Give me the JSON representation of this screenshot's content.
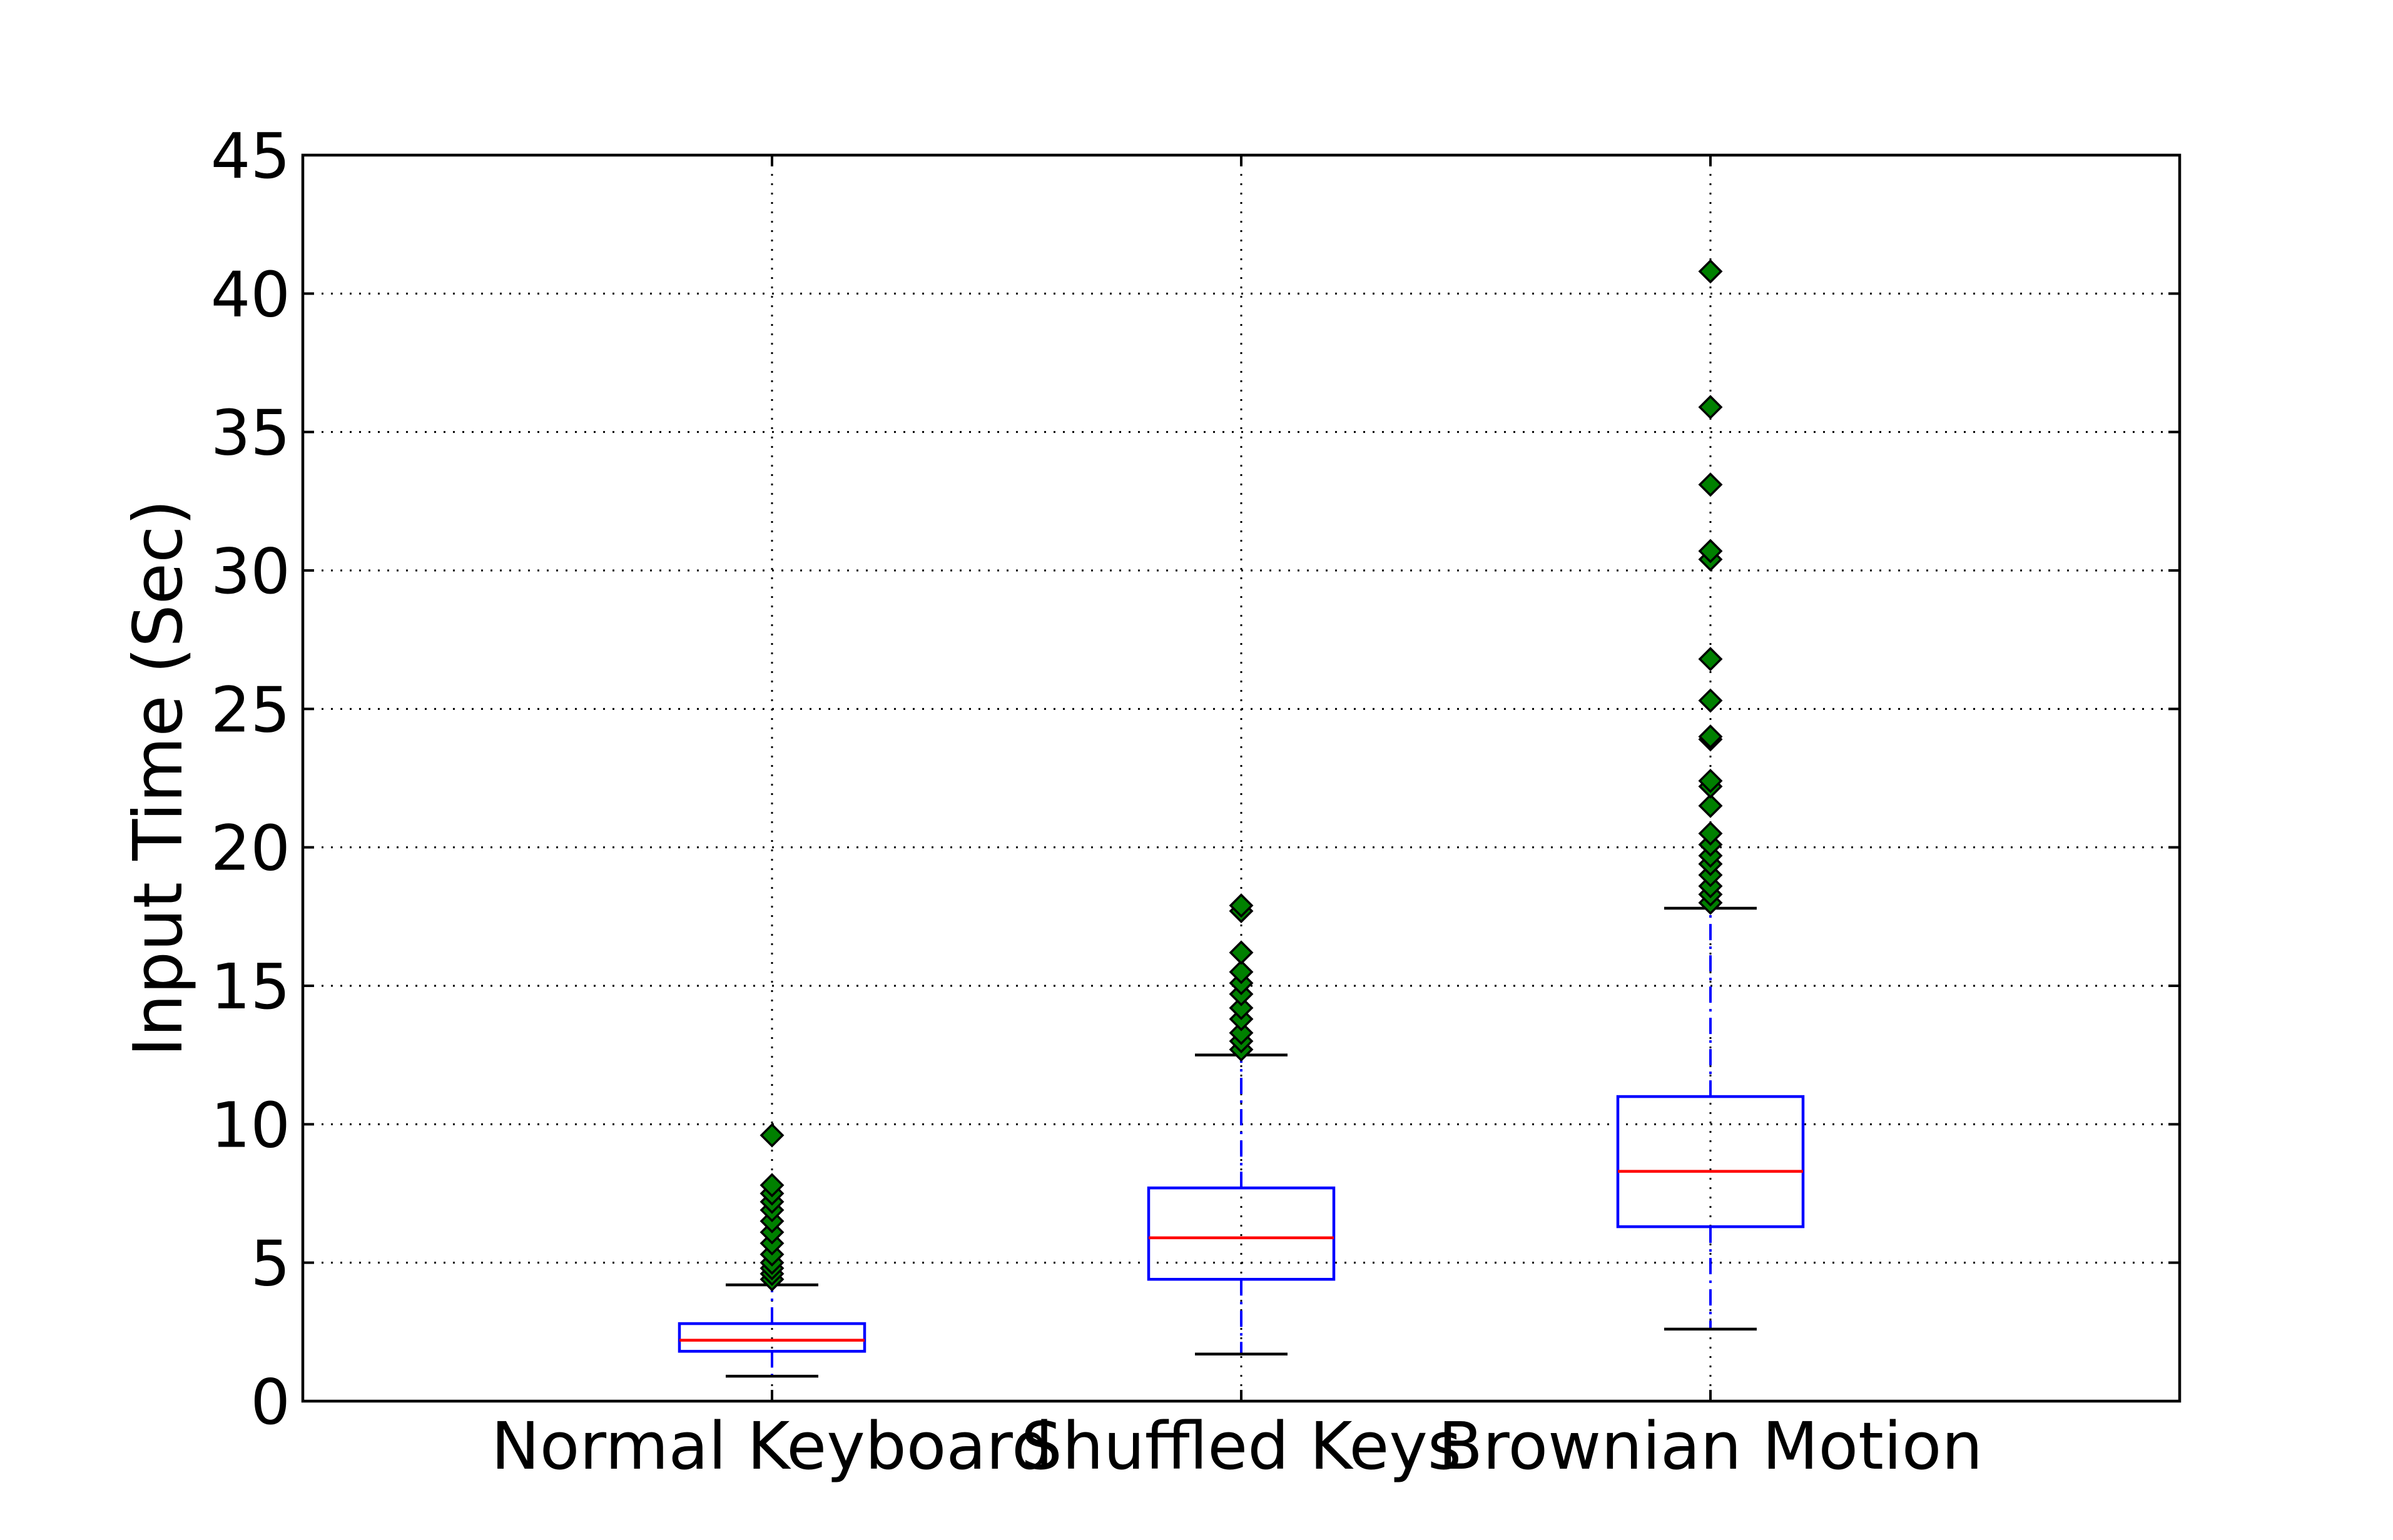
{
  "chart_data": {
    "type": "box",
    "title": "",
    "xlabel": "",
    "ylabel": "Input Time (Sec)",
    "ylim": [
      0,
      45
    ],
    "yticks": [
      0,
      5,
      10,
      15,
      20,
      25,
      30,
      35,
      40,
      45
    ],
    "ytick_labels": [
      "0",
      "5",
      "10",
      "15",
      "20",
      "25",
      "30",
      "35",
      "40",
      "45"
    ],
    "grid": true,
    "legend": "none",
    "colors": {
      "box": "#0000ff",
      "median": "#ff0000",
      "whisker": "#0000ff",
      "cap": "#000000",
      "outlier_fill": "#008000",
      "outlier_edge": "#000000"
    },
    "categories": [
      "Normal Keyboard",
      "Shuffled Keys",
      "Brownian Motion"
    ],
    "boxes": [
      {
        "label": "Normal Keyboard",
        "whisker_low": 0.9,
        "q1": 1.8,
        "median": 2.2,
        "q3": 2.8,
        "whisker_high": 4.2,
        "outliers": [
          4.4,
          4.6,
          4.8,
          5.0,
          5.3,
          5.7,
          6.1,
          6.5,
          6.9,
          7.2,
          7.5,
          7.8,
          9.6
        ]
      },
      {
        "label": "Shuffled Keys",
        "whisker_low": 1.7,
        "q1": 4.4,
        "median": 5.9,
        "q3": 7.7,
        "whisker_high": 12.5,
        "outliers": [
          12.7,
          13.0,
          13.3,
          13.8,
          14.2,
          14.7,
          15.1,
          15.5,
          16.2,
          17.7,
          17.9
        ]
      },
      {
        "label": "Brownian Motion",
        "whisker_low": 2.6,
        "q1": 6.3,
        "median": 8.3,
        "q3": 11.0,
        "whisker_high": 17.8,
        "outliers": [
          18.0,
          18.3,
          18.6,
          19.0,
          19.4,
          19.7,
          20.1,
          20.5,
          21.5,
          22.2,
          22.4,
          23.9,
          24.0,
          25.3,
          26.8,
          30.4,
          30.7,
          33.1,
          35.9,
          40.8
        ]
      }
    ]
  }
}
